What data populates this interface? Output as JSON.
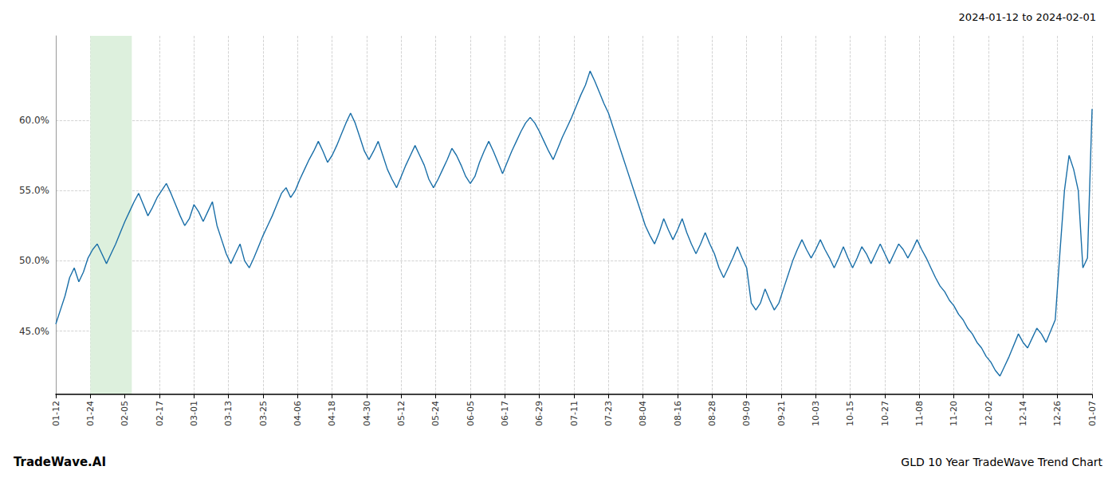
{
  "chart_data": {
    "type": "line",
    "title": "2024-01-12 to 2024-02-01",
    "annotations": [
      "TradeWave.AI",
      "GLD 10 Year TradeWave Trend Chart"
    ],
    "color": "#1a6fa8",
    "grid": true,
    "xlim": [
      0,
      30
    ],
    "xticks": [
      {
        "value": 0,
        "label": "01-12"
      },
      {
        "value": 1,
        "label": "01-24"
      },
      {
        "value": 2,
        "label": "02-05"
      },
      {
        "value": 3,
        "label": "02-17"
      },
      {
        "value": 4,
        "label": "03-01"
      },
      {
        "value": 5,
        "label": "03-13"
      },
      {
        "value": 6,
        "label": "03-25"
      },
      {
        "value": 7,
        "label": "04-06"
      },
      {
        "value": 8,
        "label": "04-18"
      },
      {
        "value": 9,
        "label": "04-30"
      },
      {
        "value": 10,
        "label": "05-12"
      },
      {
        "value": 11,
        "label": "05-24"
      },
      {
        "value": 12,
        "label": "06-05"
      },
      {
        "value": 13,
        "label": "06-17"
      },
      {
        "value": 14,
        "label": "06-29"
      },
      {
        "value": 15,
        "label": "07-11"
      },
      {
        "value": 16,
        "label": "07-23"
      },
      {
        "value": 17,
        "label": "08-04"
      },
      {
        "value": 18,
        "label": "08-16"
      },
      {
        "value": 19,
        "label": "08-28"
      },
      {
        "value": 20,
        "label": "09-09"
      },
      {
        "value": 21,
        "label": "09-21"
      },
      {
        "value": 22,
        "label": "10-03"
      },
      {
        "value": 23,
        "label": "10-15"
      },
      {
        "value": 24,
        "label": "10-27"
      },
      {
        "value": 25,
        "label": "11-08"
      },
      {
        "value": 26,
        "label": "11-20"
      },
      {
        "value": 27,
        "label": "12-02"
      },
      {
        "value": 28,
        "label": "12-14"
      },
      {
        "value": 29,
        "label": "12-26"
      },
      {
        "value": 30,
        "label": "01-07"
      }
    ],
    "ylim": [
      40.5,
      66.0
    ],
    "yticks": [
      {
        "value": 45.0,
        "label": "45.0%"
      },
      {
        "value": 50.0,
        "label": "50.0%"
      },
      {
        "value": 55.0,
        "label": "55.0%"
      },
      {
        "value": 60.0,
        "label": "60.0%"
      }
    ],
    "spans": [
      {
        "x_start": 1,
        "x_end": 2.2,
        "color": "#ddf0dd"
      }
    ],
    "values": [
      45.5,
      46.5,
      47.5,
      48.8,
      49.5,
      48.5,
      49.2,
      50.2,
      50.8,
      51.2,
      50.5,
      49.8,
      50.5,
      51.2,
      52.0,
      52.8,
      53.5,
      54.2,
      54.8,
      54.0,
      53.2,
      53.8,
      54.5,
      55.0,
      55.5,
      54.8,
      54.0,
      53.2,
      52.5,
      53.0,
      54.0,
      53.5,
      52.8,
      53.5,
      54.2,
      52.5,
      51.5,
      50.5,
      49.8,
      50.5,
      51.2,
      50.0,
      49.5,
      50.2,
      51.0,
      51.8,
      52.5,
      53.2,
      54.0,
      54.8,
      55.2,
      54.5,
      55.0,
      55.8,
      56.5,
      57.2,
      57.8,
      58.5,
      57.8,
      57.0,
      57.5,
      58.2,
      59.0,
      59.8,
      60.5,
      59.8,
      58.8,
      57.8,
      57.2,
      57.8,
      58.5,
      57.5,
      56.5,
      55.8,
      55.2,
      56.0,
      56.8,
      57.5,
      58.2,
      57.5,
      56.8,
      55.8,
      55.2,
      55.8,
      56.5,
      57.2,
      58.0,
      57.5,
      56.8,
      56.0,
      55.5,
      56.0,
      57.0,
      57.8,
      58.5,
      57.8,
      57.0,
      56.2,
      57.0,
      57.8,
      58.5,
      59.2,
      59.8,
      60.2,
      59.8,
      59.2,
      58.5,
      57.8,
      57.2,
      58.0,
      58.8,
      59.5,
      60.2,
      61.0,
      61.8,
      62.5,
      63.5,
      62.8,
      62.0,
      61.2,
      60.5,
      59.5,
      58.5,
      57.5,
      56.5,
      55.5,
      54.5,
      53.5,
      52.5,
      51.8,
      51.2,
      52.0,
      53.0,
      52.2,
      51.5,
      52.2,
      53.0,
      52.0,
      51.2,
      50.5,
      51.2,
      52.0,
      51.2,
      50.5,
      49.5,
      48.8,
      49.5,
      50.2,
      51.0,
      50.2,
      49.5,
      47.0,
      46.5,
      47.0,
      48.0,
      47.2,
      46.5,
      47.0,
      48.0,
      49.0,
      50.0,
      50.8,
      51.5,
      50.8,
      50.2,
      50.8,
      51.5,
      50.8,
      50.2,
      49.5,
      50.2,
      51.0,
      50.2,
      49.5,
      50.2,
      51.0,
      50.5,
      49.8,
      50.5,
      51.2,
      50.5,
      49.8,
      50.5,
      51.2,
      50.8,
      50.2,
      50.8,
      51.5,
      50.8,
      50.2,
      49.5,
      48.8,
      48.2,
      47.8,
      47.2,
      46.8,
      46.2,
      45.8,
      45.2,
      44.8,
      44.2,
      43.8,
      43.2,
      42.8,
      42.2,
      41.8,
      42.5,
      43.2,
      44.0,
      44.8,
      44.2,
      43.8,
      44.5,
      45.2,
      44.8,
      44.2,
      45.0,
      45.8,
      50.5,
      55.0,
      57.5,
      56.5,
      55.0,
      49.5,
      50.2,
      60.8
    ]
  }
}
